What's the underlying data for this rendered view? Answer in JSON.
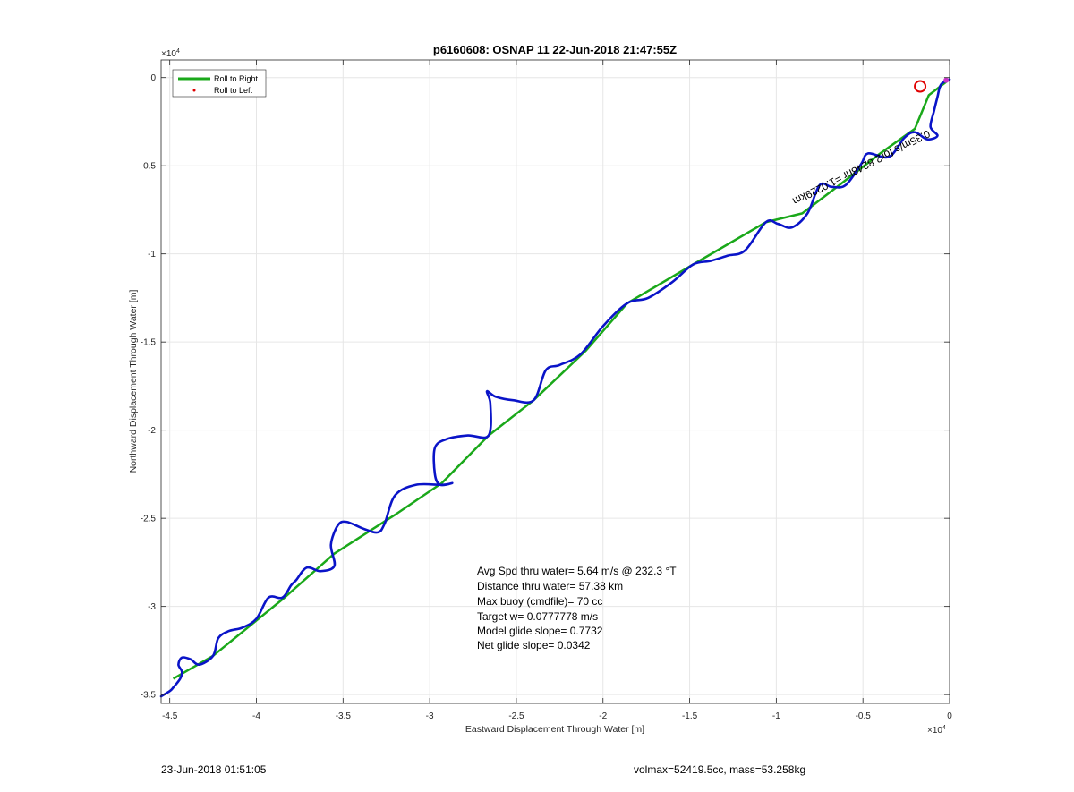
{
  "chart_data": {
    "type": "line",
    "title": "p6160608: OSNAP 11 22-Jun-2018 21:47:55Z",
    "xlabel": "Eastward Displacement Through Water [m]",
    "ylabel": "Northward Displacement Through Water [m]",
    "x_multiplier": "×10",
    "x_multiplier_exp": "4",
    "y_multiplier": "×10",
    "y_multiplier_exp": "4",
    "xlim": [
      -45500,
      0
    ],
    "ylim": [
      -35500,
      1000
    ],
    "xticks": [
      -45000,
      -40000,
      -35000,
      -30000,
      -25000,
      -20000,
      -15000,
      -10000,
      -5000,
      0
    ],
    "xtick_labels": [
      "-4.5",
      "-4",
      "-3.5",
      "-3",
      "-2.5",
      "-2",
      "-1.5",
      "-1",
      "-0.5",
      "0"
    ],
    "yticks": [
      0,
      -5000,
      -10000,
      -15000,
      -20000,
      -25000,
      -30000,
      -35000
    ],
    "ytick_labels": [
      "0",
      "-0.5",
      "-1",
      "-1.5",
      "-2",
      "-2.5",
      "-3",
      "-3.5"
    ],
    "grid": true,
    "legend_position": "top-left",
    "legend": [
      {
        "label": "Roll to Right",
        "color": "#1aa81a",
        "style": "line"
      },
      {
        "label": "Roll to Left",
        "color": "#e00000",
        "style": "dot"
      }
    ],
    "series": [
      {
        "name": "Roll to Right",
        "color": "#1aa81a",
        "x": [
          0,
          -1200,
          -2000,
          -4000,
          -6500,
          -8500,
          -10600,
          -14800,
          -18600,
          -21000,
          -24000,
          -26600,
          -29300,
          -32000,
          -35500,
          -38500,
          -40000,
          -42500,
          -44800
        ],
        "y": [
          -100,
          -1000,
          -2900,
          -4300,
          -6200,
          -7700,
          -8200,
          -10600,
          -12800,
          -15500,
          -18300,
          -20300,
          -23000,
          -24800,
          -27000,
          -29600,
          -30800,
          -32800,
          -34100
        ]
      },
      {
        "name": "track",
        "color": "#0a14c8",
        "x": [
          0,
          -500,
          -700,
          -900,
          -1100,
          -700,
          -1300,
          -2000,
          -2600,
          -3500,
          -4700,
          -5100,
          -6000,
          -6800,
          -7500,
          -8200,
          -9100,
          -9900,
          -10600,
          -11800,
          -12800,
          -13800,
          -14800,
          -16000,
          -17400,
          -18600,
          -20000,
          -21300,
          -22500,
          -23300,
          -24000,
          -25200,
          -26200,
          -26700,
          -26500,
          -26600,
          -27800,
          -29000,
          -29700,
          -29700,
          -29400,
          -28700,
          -29300,
          -30800,
          -32000,
          -32600,
          -33000,
          -33800,
          -34800,
          -35300,
          -35700,
          -35500,
          -36300,
          -37100,
          -37700,
          -38000,
          -38500,
          -39300,
          -40000,
          -40800,
          -41600,
          -42200,
          -42500,
          -43300,
          -43800,
          -44300,
          -44500,
          -44300,
          -44400,
          -44800,
          -45000,
          -45500
        ],
        "y": [
          -100,
          -400,
          -1100,
          -1900,
          -2800,
          -3300,
          -3500,
          -3100,
          -3400,
          -4500,
          -4300,
          -4900,
          -6100,
          -6200,
          -6100,
          -7700,
          -8500,
          -8300,
          -8200,
          -9800,
          -10100,
          -10400,
          -10600,
          -11600,
          -12500,
          -12800,
          -14100,
          -15700,
          -16300,
          -16600,
          -18300,
          -18300,
          -18100,
          -17800,
          -18500,
          -20300,
          -20300,
          -20500,
          -21000,
          -22500,
          -23100,
          -23000,
          -23100,
          -23100,
          -23700,
          -25300,
          -25800,
          -25600,
          -25200,
          -25400,
          -26500,
          -27700,
          -28000,
          -27800,
          -28500,
          -28800,
          -29500,
          -29500,
          -30700,
          -31200,
          -31400,
          -31800,
          -32800,
          -33300,
          -33000,
          -32900,
          -33300,
          -33700,
          -34100,
          -34600,
          -34800,
          -35100
        ]
      }
    ],
    "path_label": "0.35m/s for2.8248hr =1.0229km",
    "markers": [
      {
        "name": "circle-marker",
        "x": -1700,
        "y": -500,
        "color": "#e00000"
      },
      {
        "name": "magenta-marker",
        "x": -200,
        "y": -150,
        "color": "#cc33cc"
      }
    ],
    "annotations": [
      "Avg Spd thru water=  5.64 m/s @ 232.3 °T",
      "Distance thru water= 57.38 km",
      "Max buoy (cmdfile)= 70 cc",
      "Target w= 0.0777778 m/s",
      "Model glide slope= 0.7732",
      "Net glide slope= 0.0342"
    ]
  },
  "footer": {
    "timestamp": "23-Jun-2018 01:51:05",
    "info": "volmax=52419.5cc, mass=53.258kg"
  }
}
